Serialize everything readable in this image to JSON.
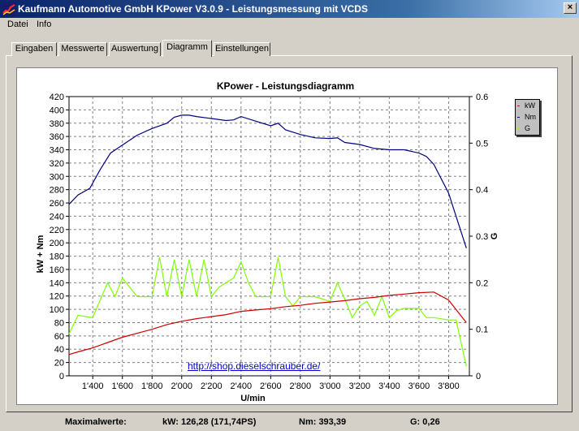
{
  "window": {
    "title": "Kaufmann Automotive GmbH  KPower V3.0.9 - Leistungsmessung mit VCDS",
    "close_label": "×",
    "icon": "app-logo-icon"
  },
  "menu": {
    "items": [
      "Datei",
      "Info"
    ]
  },
  "tabs": [
    {
      "label": "Eingaben",
      "active": false
    },
    {
      "label": "Messwerte",
      "active": false
    },
    {
      "label": "Auswertung",
      "active": false
    },
    {
      "label": "Diagramm",
      "active": true
    },
    {
      "label": "Einstellungen",
      "active": false
    }
  ],
  "chart": {
    "link_text": "http://shop.dieselschrauber.de/",
    "legend": [
      {
        "label": "kW",
        "color": "#cc0000"
      },
      {
        "label": "Nm",
        "color": "#000080"
      },
      {
        "label": "G",
        "color": "#80ff00"
      }
    ]
  },
  "chart_data": {
    "type": "line",
    "title": "KPower - Leistungsdiagramm",
    "xlabel": "U/min",
    "ylabel": "kW + Nm",
    "y2label": "G",
    "xlim": [
      1240,
      3940
    ],
    "ylim": [
      0,
      420
    ],
    "y2lim": [
      0,
      0.6
    ],
    "xticks": [
      1400,
      1600,
      1800,
      2000,
      2200,
      2400,
      2600,
      2800,
      3000,
      3200,
      3400,
      3600,
      3800
    ],
    "xtick_labels": [
      "1'400",
      "1'600",
      "1'800",
      "2'000",
      "2'200",
      "2'400",
      "2'600",
      "2'800",
      "3'000",
      "3'200",
      "3'400",
      "3'600",
      "3'800"
    ],
    "yticks": [
      0,
      20,
      40,
      60,
      80,
      100,
      120,
      140,
      160,
      180,
      200,
      220,
      240,
      260,
      280,
      300,
      320,
      340,
      360,
      380,
      400,
      420
    ],
    "y2ticks": [
      0,
      0.1,
      0.2,
      0.3,
      0.4,
      0.5,
      0.6
    ],
    "y2tick_labels": [
      "0",
      "0.1",
      "0.2",
      "0.3",
      "0.4",
      "0.5",
      "0.6"
    ],
    "grid": true,
    "series": [
      {
        "name": "kW",
        "axis": "left",
        "color": "#cc0000",
        "x": [
          1240,
          1300,
          1400,
          1500,
          1600,
          1700,
          1800,
          1900,
          2000,
          2100,
          2200,
          2300,
          2400,
          2500,
          2600,
          2700,
          2800,
          2900,
          3000,
          3100,
          3200,
          3300,
          3400,
          3500,
          3600,
          3700,
          3800,
          3920
        ],
        "y": [
          32,
          36,
          42,
          50,
          58,
          64,
          70,
          77,
          82,
          86,
          89,
          92,
          97,
          99,
          101,
          104,
          106,
          109,
          111,
          113,
          116,
          118,
          121,
          123,
          125,
          126,
          114,
          80
        ]
      },
      {
        "name": "Nm",
        "axis": "left",
        "color": "#000080",
        "x": [
          1240,
          1300,
          1380,
          1450,
          1520,
          1600,
          1700,
          1800,
          1900,
          1950,
          2000,
          2050,
          2100,
          2200,
          2300,
          2350,
          2400,
          2500,
          2600,
          2650,
          2700,
          2800,
          2900,
          3000,
          3050,
          3100,
          3200,
          3300,
          3400,
          3500,
          3600,
          3650,
          3700,
          3800,
          3850,
          3920
        ],
        "y": [
          258,
          272,
          282,
          310,
          335,
          347,
          362,
          372,
          380,
          389,
          392,
          392,
          390,
          387,
          384,
          385,
          390,
          383,
          376,
          380,
          370,
          363,
          358,
          357,
          358,
          351,
          348,
          342,
          340,
          340,
          335,
          330,
          318,
          275,
          240,
          192
        ]
      },
      {
        "name": "G",
        "axis": "right",
        "color": "#80ff00",
        "x": [
          1240,
          1300,
          1400,
          1500,
          1550,
          1600,
          1650,
          1700,
          1750,
          1800,
          1850,
          1900,
          1950,
          2000,
          2050,
          2100,
          2150,
          2200,
          2250,
          2300,
          2350,
          2400,
          2450,
          2500,
          2550,
          2600,
          2650,
          2700,
          2750,
          2800,
          2900,
          3000,
          3050,
          3100,
          3150,
          3200,
          3250,
          3300,
          3350,
          3400,
          3450,
          3500,
          3600,
          3650,
          3700,
          3800,
          3850,
          3920
        ],
        "y": [
          0.09,
          0.13,
          0.125,
          0.2,
          0.17,
          0.21,
          0.19,
          0.17,
          0.17,
          0.17,
          0.255,
          0.17,
          0.25,
          0.17,
          0.25,
          0.17,
          0.25,
          0.17,
          0.19,
          0.2,
          0.21,
          0.245,
          0.2,
          0.17,
          0.17,
          0.17,
          0.255,
          0.17,
          0.15,
          0.17,
          0.17,
          0.16,
          0.2,
          0.165,
          0.125,
          0.15,
          0.16,
          0.13,
          0.17,
          0.125,
          0.14,
          0.145,
          0.145,
          0.125,
          0.125,
          0.12,
          0.12,
          0.02
        ]
      }
    ]
  },
  "status": {
    "label": "Maximalwerte:",
    "kw": "kW: 126,28 (171,74PS)",
    "nm": "Nm: 393,39",
    "g": "G: 0,26"
  }
}
